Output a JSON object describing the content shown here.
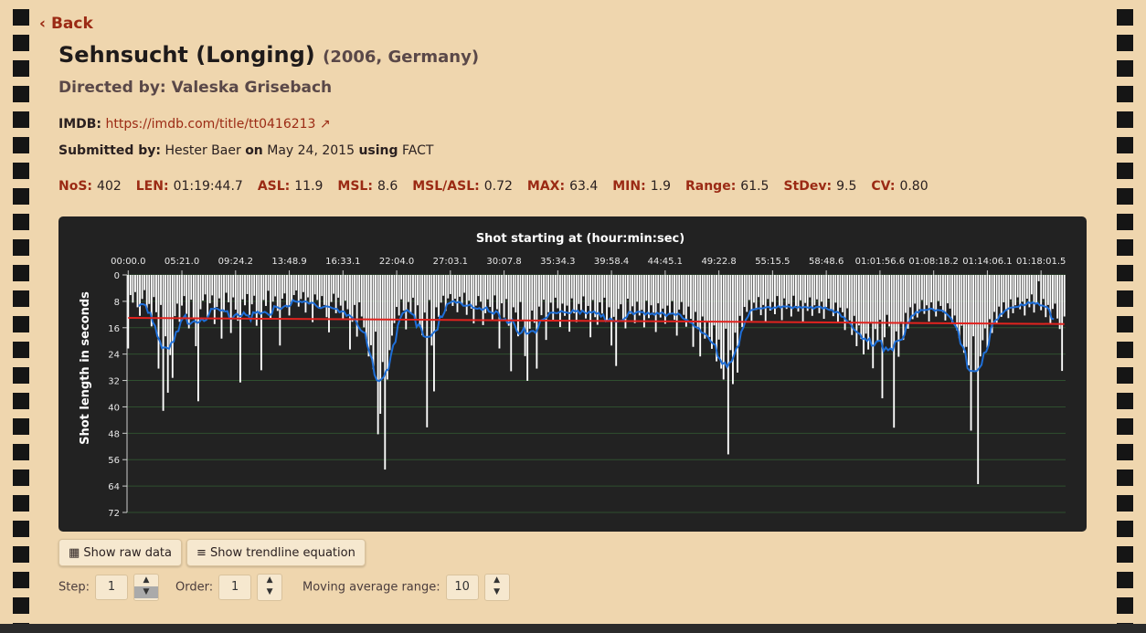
{
  "back": "Back",
  "title": "Sehnsucht (Longing)",
  "year_country": "(2006, Germany)",
  "directed": "Directed by: Valeska Grisebach",
  "imdb_label": "IMDB:",
  "imdb_url": "https://imdb.com/title/tt0416213",
  "submitted": {
    "label": "Submitted by:",
    "name": "Hester Baer",
    "on": "on",
    "date": "May 24, 2015",
    "using": "using",
    "tool": "FACT"
  },
  "stats": [
    {
      "label": "NoS:",
      "value": 402
    },
    {
      "label": "LEN:",
      "value": "01:19:44.7"
    },
    {
      "label": "ASL:",
      "value": 11.9
    },
    {
      "label": "MSL:",
      "value": 8.6
    },
    {
      "label": "MSL/ASL:",
      "value": 0.72
    },
    {
      "label": "MAX:",
      "value": 63.4
    },
    {
      "label": "MIN:",
      "value": 1.9
    },
    {
      "label": "Range:",
      "value": 61.5
    },
    {
      "label": "StDev:",
      "value": 9.5
    },
    {
      "label": "CV:",
      "value": "0.80"
    }
  ],
  "chart_data": {
    "type": "bar",
    "title": "Shot starting at (hour:min:sec)",
    "y_label": "Shot length in seconds",
    "color": "#ffffff",
    "moving_average_color": "#1f6fd8",
    "trendline_color": "#e0231e",
    "grid": true,
    "ylim": [
      0,
      72
    ],
    "yticks": [
      0,
      8,
      16,
      24,
      32,
      40,
      48,
      56,
      64,
      72
    ],
    "xticks": [
      {
        "value": 0,
        "label": "00:00.0"
      },
      {
        "value": 23,
        "label": "05:21.0"
      },
      {
        "value": 46,
        "label": "09:24.2"
      },
      {
        "value": 69,
        "label": "13:48.9"
      },
      {
        "value": 92,
        "label": "16:33.1"
      },
      {
        "value": 115,
        "label": "22:04.0"
      },
      {
        "value": 138,
        "label": "27:03.1"
      },
      {
        "value": 161,
        "label": "30:07.8"
      },
      {
        "value": 184,
        "label": "35:34.3"
      },
      {
        "value": 207,
        "label": "39:58.4"
      },
      {
        "value": 230,
        "label": "44:45.1"
      },
      {
        "value": 253,
        "label": "49:22.8"
      },
      {
        "value": 276,
        "label": "55:15.5"
      },
      {
        "value": 299,
        "label": "58:48.6"
      },
      {
        "value": 322,
        "label": "01:01:56.6"
      },
      {
        "value": 345,
        "label": "01:08:18.2"
      },
      {
        "value": 368,
        "label": "01:14:06.1"
      },
      {
        "value": 391,
        "label": "01:18:01.5"
      }
    ],
    "values": [
      22.3,
      6.1,
      8.4,
      5.2,
      9.8,
      12.4,
      7.3,
      4.6,
      10.2,
      8.8,
      15.6,
      6.7,
      11.3,
      28.4,
      9.1,
      41.2,
      18.6,
      35.7,
      24.3,
      31.2,
      12.5,
      8.7,
      14.2,
      9.3,
      6.4,
      11.8,
      16.2,
      7.5,
      13.4,
      21.6,
      38.3,
      10.4,
      7.8,
      5.9,
      12.7,
      8.6,
      6.2,
      14.9,
      9.7,
      7.1,
      19.3,
      11.2,
      5.4,
      8.3,
      17.6,
      6.8,
      10.5,
      13.9,
      32.6,
      7.4,
      9.2,
      5.8,
      12.1,
      8.9,
      6.3,
      15.4,
      11.7,
      28.9,
      7.6,
      9.4,
      4.8,
      13.2,
      8.1,
      6.5,
      10.9,
      21.4,
      7.2,
      5.6,
      9.8,
      12.3,
      8.4,
      6.1,
      4.7,
      9.6,
      7.3,
      5.2,
      11.4,
      6.8,
      8.7,
      14.3,
      5.9,
      7.6,
      10.2,
      6.4,
      9.1,
      12.8,
      17.4,
      8.2,
      5.7,
      11.6,
      6.9,
      9.3,
      13.5,
      7.8,
      10.4,
      22.6,
      14.2,
      9.1,
      18.7,
      8.3,
      12.6,
      15.9,
      19.4,
      24.7,
      21.3,
      28.6,
      17.2,
      48.3,
      42.1,
      26.4,
      59.0,
      31.7,
      22.8,
      18.4,
      14.6,
      9.7,
      12.3,
      7.4,
      10.8,
      16.5,
      8.2,
      11.7,
      6.9,
      13.4,
      9.2,
      15.8,
      18.3,
      11.4,
      46.2,
      7.6,
      21.4,
      35.3,
      9.8,
      12.7,
      8.4,
      6.3,
      10.9,
      7.1,
      5.8,
      9.4,
      7.2,
      11.3,
      6.6,
      8.9,
      5.4,
      12.1,
      7.8,
      10.2,
      14.7,
      9.3,
      6.4,
      8.1,
      15.2,
      11.6,
      7.4,
      9.7,
      13.8,
      6.2,
      10.4,
      22.3,
      8.6,
      12.9,
      7.3,
      15.4,
      29.2,
      9.8,
      11.4,
      18.6,
      8.2,
      13.7,
      24.6,
      32.1,
      16.3,
      10.8,
      14.5,
      28.4,
      9.6,
      12.2,
      7.5,
      19.7,
      11.3,
      8.4,
      13.6,
      6.9,
      10.1,
      15.8,
      8.7,
      12.4,
      9.3,
      17.2,
      7.1,
      11.6,
      14.3,
      8.8,
      10.7,
      6.5,
      13.2,
      9.4,
      18.9,
      7.6,
      12.8,
      15.1,
      8.3,
      11.7,
      6.9,
      14.2,
      9.8,
      21.4,
      12.7,
      27.6,
      10.3,
      8.9,
      13.4,
      16.2,
      7.2,
      11.8,
      9.5,
      14.6,
      8.1,
      12.3,
      10.6,
      15.9,
      7.8,
      13.1,
      9.2,
      11.4,
      17.3,
      8.6,
      12.9,
      10.2,
      14.8,
      9.3,
      11.7,
      7.9,
      13.6,
      18.4,
      10.5,
      8.2,
      12.1,
      15.7,
      9.6,
      13.3,
      21.8,
      11.2,
      16.4,
      24.7,
      12.6,
      19.3,
      14.1,
      18.8,
      22.4,
      15.3,
      26.2,
      19.6,
      28.4,
      31.7,
      16.3,
      54.4,
      22.8,
      33.1,
      17.5,
      29.6,
      12.4,
      15.8,
      9.7,
      11.2,
      7.6,
      13.9,
      8.4,
      10.6,
      6.7,
      12.2,
      9.1,
      14.4,
      7.3,
      10.8,
      8.2,
      11.9,
      6.4,
      9.6,
      13.7,
      7.1,
      10.3,
      8.8,
      12.6,
      6.3,
      9.4,
      11.1,
      7.7,
      14.2,
      8.5,
      10.9,
      6.8,
      12.4,
      9.2,
      7.4,
      11.6,
      8.1,
      13.3,
      9.7,
      7.2,
      10.8,
      12.5,
      8.4,
      14.6,
      9.9,
      11.3,
      16.7,
      10.1,
      13.8,
      18.2,
      12.4,
      21.6,
      15.3,
      19.4,
      24.1,
      17.8,
      22.6,
      14.7,
      28.3,
      16.4,
      20.2,
      13.6,
      37.4,
      18.9,
      12.1,
      15.6,
      22.4,
      46.3,
      17.1,
      24.8,
      14.2,
      19.7,
      11.5,
      16.3,
      9.8,
      13.4,
      8.7,
      12.9,
      10.4,
      7.6,
      11.8,
      9.2,
      14.1,
      8.3,
      10.7,
      12.6,
      7.9,
      9.4,
      11.3,
      13.8,
      8.6,
      10.2,
      14.9,
      12.3,
      16.8,
      19.2,
      15.4,
      23.6,
      21.8,
      27.4,
      47.2,
      18.6,
      29.3,
      63.4,
      24.7,
      19.8,
      16.2,
      22.5,
      13.4,
      17.6,
      11.2,
      14.8,
      9.6,
      12.7,
      8.3,
      10.9,
      13.1,
      7.4,
      11.6,
      9.2,
      6.8,
      10.4,
      8.1,
      12.3,
      7.2,
      9.8,
      5.9,
      11.4,
      8.6,
      1.9,
      10.7,
      7.3,
      12.8,
      9.1,
      14.6,
      10.3,
      8.7,
      13.2,
      16.4,
      29.1,
      12.6
    ]
  },
  "buttons": [
    "Show raw data",
    "Show trendline equation"
  ],
  "controls": [
    {
      "label": "Step:",
      "value": 1
    },
    {
      "label": "Order:",
      "value": 1
    },
    {
      "label": "Moving average range:",
      "value": 10
    }
  ]
}
